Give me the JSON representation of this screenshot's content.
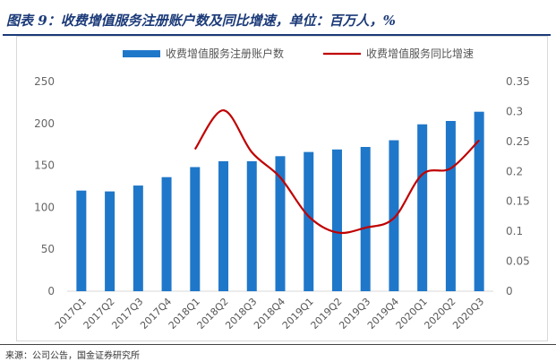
{
  "header": {
    "title": "图表 9：收费增值服务注册账户数及同比增速，单位：百万人，%"
  },
  "footer": {
    "source": "来源：公司公告，国金证券研究所"
  },
  "chart_data": {
    "type": "bar",
    "title": "",
    "categories": [
      "2017Q1",
      "2017Q2",
      "2017Q3",
      "2017Q4",
      "2018Q1",
      "2018Q2",
      "2018Q3",
      "2018Q4",
      "2019Q1",
      "2019Q2",
      "2019Q3",
      "2019Q4",
      "2020Q1",
      "2020Q2",
      "2020Q3"
    ],
    "series": [
      {
        "name": "收费增值服务注册账户数",
        "type": "bar",
        "axis": "left",
        "color": "#1f77c9",
        "values": [
          120,
          119,
          126,
          136,
          148,
          155,
          155,
          161,
          166,
          169,
          172,
          180,
          199,
          203,
          214
        ]
      },
      {
        "name": "收费增值服务同比增速",
        "type": "line",
        "axis": "right",
        "color": "#c00000",
        "values": [
          null,
          null,
          null,
          null,
          0.237,
          0.302,
          0.232,
          0.19,
          0.125,
          0.098,
          0.106,
          0.122,
          0.195,
          0.205,
          0.252
        ]
      }
    ],
    "y_left": {
      "min": 0,
      "max": 250,
      "ticks": [
        0,
        50,
        100,
        150,
        200,
        250
      ]
    },
    "y_right": {
      "min": 0,
      "max": 0.35,
      "ticks": [
        "0",
        "0.05",
        "0.1",
        "0.15",
        "0.2",
        "0.25",
        "0.3",
        "0.35"
      ]
    },
    "legend": "top-center",
    "grid": false
  }
}
